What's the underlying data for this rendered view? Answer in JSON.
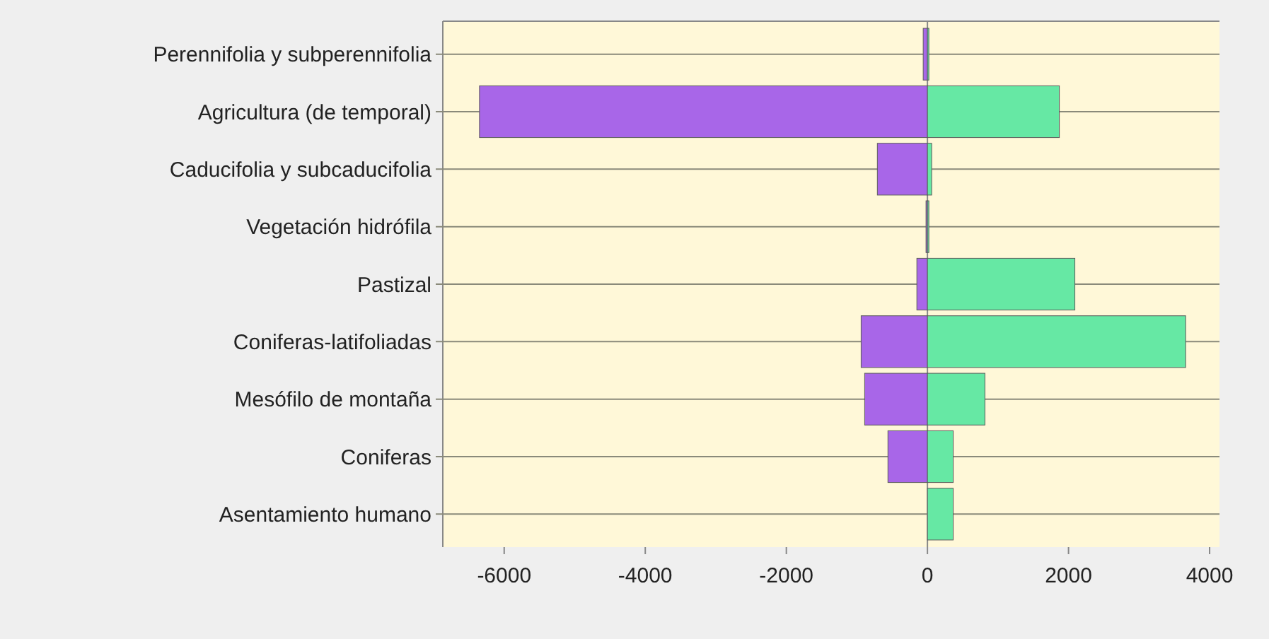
{
  "chart_data": {
    "type": "bar",
    "orientation": "horizontal",
    "stacked": true,
    "categories": [
      "Perennifolia y subperennifolia",
      "Agricultura (de temporal)",
      "Caducifolia y subcaducifolia",
      "Vegetación hidrófila",
      "Pastizal",
      "Coniferas-latifoliadas",
      "Mesófilo de montaña",
      "Coniferas",
      "Asentamiento humano"
    ],
    "series": [
      {
        "color": "#a866e8",
        "values": [
          -60,
          -6350,
          -710,
          -20,
          -150,
          -940,
          -890,
          -560,
          null
        ]
      },
      {
        "color": "#66e8a4",
        "values": [
          20,
          1870,
          60,
          10,
          2090,
          3660,
          815,
          365,
          365
        ]
      }
    ],
    "xlim": [
      -6870,
      4140
    ],
    "xticks": [
      -6000,
      -4000,
      -2000,
      0,
      2000,
      4000
    ],
    "grid": "y"
  }
}
